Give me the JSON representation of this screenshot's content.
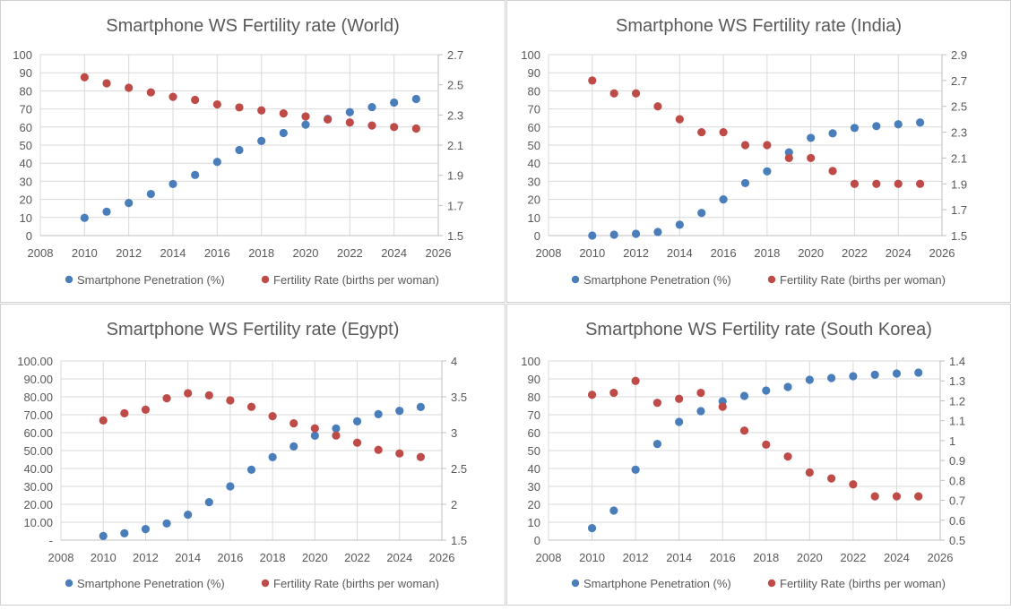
{
  "colors": {
    "smartphone": "#4A7EBB",
    "fertility": "#BE4B48",
    "grid": "#D9D9D9",
    "text": "#595959",
    "border": "#D0D0D0"
  },
  "chart_data": [
    {
      "type": "scatter",
      "title": "Smartphone WS Fertility rate (World)",
      "xlim": [
        2008,
        2026
      ],
      "x_ticks": [
        "2008",
        "2010",
        "2012",
        "2014",
        "2016",
        "2018",
        "2020",
        "2022",
        "2024",
        "2026"
      ],
      "y_left": {
        "lim": [
          0,
          100
        ],
        "ticks": [
          "0",
          "10",
          "20",
          "30",
          "40",
          "50",
          "60",
          "70",
          "80",
          "90",
          "100"
        ]
      },
      "y_right": {
        "lim": [
          1.5,
          2.7
        ],
        "ticks": [
          "1.5",
          "1.7",
          "1.9",
          "2.1",
          "2.3",
          "2.5",
          "2.7"
        ]
      },
      "grid": true,
      "legend": "bottom",
      "x": [
        2010,
        2011,
        2012,
        2013,
        2014,
        2015,
        2016,
        2017,
        2018,
        2019,
        2020,
        2021,
        2022,
        2023,
        2024,
        2025
      ],
      "series": [
        {
          "name": "Smartphone Penetration (%)",
          "axis": "left",
          "values": [
            9.8,
            13.2,
            18,
            23,
            28.5,
            33.5,
            40.7,
            47.3,
            52.3,
            56.7,
            61.3,
            64.5,
            68.2,
            71,
            73.5,
            75.5
          ]
        },
        {
          "name": "Fertility Rate (births per woman)",
          "axis": "right",
          "values": [
            2.55,
            2.51,
            2.48,
            2.45,
            2.42,
            2.4,
            2.37,
            2.35,
            2.33,
            2.31,
            2.29,
            2.27,
            2.25,
            2.23,
            2.22,
            2.21
          ]
        }
      ]
    },
    {
      "type": "scatter",
      "title": "Smartphone WS Fertility rate (India)",
      "xlim": [
        2008,
        2026
      ],
      "x_ticks": [
        "2008",
        "2010",
        "2012",
        "2014",
        "2016",
        "2018",
        "2020",
        "2022",
        "2024",
        "2026"
      ],
      "y_left": {
        "lim": [
          0,
          100
        ],
        "ticks": [
          "0",
          "10",
          "20",
          "30",
          "40",
          "50",
          "60",
          "70",
          "80",
          "90",
          "100"
        ]
      },
      "y_right": {
        "lim": [
          1.5,
          2.9
        ],
        "ticks": [
          "1.5",
          "1.7",
          "1.9",
          "2.1",
          "2.3",
          "2.5",
          "2.7",
          "2.9"
        ]
      },
      "grid": true,
      "legend": "bottom",
      "x": [
        2010,
        2011,
        2012,
        2013,
        2014,
        2015,
        2016,
        2017,
        2018,
        2019,
        2020,
        2021,
        2022,
        2023,
        2024,
        2025
      ],
      "series": [
        {
          "name": "Smartphone Penetration (%)",
          "axis": "left",
          "values": [
            0,
            0.5,
            1,
            2,
            6,
            12.5,
            20,
            29,
            35.5,
            46,
            54,
            56.5,
            59.5,
            60.5,
            61.5,
            62.5
          ]
        },
        {
          "name": "Fertility Rate (births per woman)",
          "axis": "right",
          "values": [
            2.7,
            2.6,
            2.6,
            2.5,
            2.4,
            2.3,
            2.3,
            2.2,
            2.2,
            2.1,
            2.1,
            2.0,
            1.9,
            1.9,
            1.9,
            1.9
          ]
        }
      ]
    },
    {
      "type": "scatter",
      "title": "Smartphone WS Fertility rate (Egypt)",
      "xlim": [
        2008,
        2026
      ],
      "x_ticks": [
        "2008",
        "2010",
        "2012",
        "2014",
        "2016",
        "2018",
        "2020",
        "2022",
        "2024",
        "2026"
      ],
      "y_left": {
        "lim": [
          0,
          100
        ],
        "ticks": [
          "-",
          "10.00",
          "20.00",
          "30.00",
          "40.00",
          "50.00",
          "60.00",
          "70.00",
          "80.00",
          "90.00",
          "100.00"
        ]
      },
      "y_right": {
        "lim": [
          1.5,
          4
        ],
        "ticks": [
          "1.5",
          "2",
          "2.5",
          "3",
          "3.5",
          "4"
        ]
      },
      "grid": true,
      "legend": "bottom",
      "x": [
        2010,
        2011,
        2012,
        2013,
        2014,
        2015,
        2016,
        2017,
        2018,
        2019,
        2020,
        2021,
        2022,
        2023,
        2024,
        2025
      ],
      "series": [
        {
          "name": "Smartphone Penetration (%)",
          "axis": "left",
          "values": [
            2.3,
            3.8,
            6.2,
            9.3,
            14.2,
            21.2,
            30,
            39.3,
            46.3,
            52.3,
            58.3,
            62.3,
            66.3,
            70.3,
            72.2,
            74.3
          ]
        },
        {
          "name": "Fertility Rate (births per woman)",
          "axis": "right",
          "values": [
            3.17,
            3.27,
            3.32,
            3.48,
            3.55,
            3.52,
            3.45,
            3.36,
            3.23,
            3.13,
            3.06,
            2.96,
            2.86,
            2.76,
            2.71,
            2.66
          ]
        }
      ]
    },
    {
      "type": "scatter",
      "title": "Smartphone WS Fertility rate (South Korea)",
      "xlim": [
        2008,
        2026
      ],
      "x_ticks": [
        "2008",
        "2010",
        "2012",
        "2014",
        "2016",
        "2018",
        "2020",
        "2022",
        "2024",
        "2026"
      ],
      "y_left": {
        "lim": [
          0,
          100
        ],
        "ticks": [
          "0",
          "10",
          "20",
          "30",
          "40",
          "50",
          "60",
          "70",
          "80",
          "90",
          "100"
        ]
      },
      "y_right": {
        "lim": [
          0.5,
          1.4
        ],
        "ticks": [
          "0.5",
          "0.6",
          "0.7",
          "0.8",
          "0.9",
          "1",
          "1.1",
          "1.2",
          "1.3",
          "1.4"
        ]
      },
      "grid": true,
      "legend": "bottom",
      "x": [
        2010,
        2011,
        2012,
        2013,
        2014,
        2015,
        2016,
        2017,
        2018,
        2019,
        2020,
        2021,
        2022,
        2023,
        2024,
        2025
      ],
      "series": [
        {
          "name": "Smartphone Penetration (%)",
          "axis": "left",
          "values": [
            6.7,
            16.5,
            39.3,
            53.7,
            66,
            72,
            77.5,
            80.5,
            83.5,
            85.5,
            89.5,
            90.5,
            91.5,
            92.3,
            93,
            93.5
          ]
        },
        {
          "name": "Fertility Rate (births per woman)",
          "axis": "right",
          "values": [
            1.23,
            1.24,
            1.3,
            1.19,
            1.21,
            1.24,
            1.17,
            1.05,
            0.98,
            0.92,
            0.84,
            0.81,
            0.78,
            0.72,
            0.72,
            0.72
          ]
        }
      ]
    }
  ]
}
